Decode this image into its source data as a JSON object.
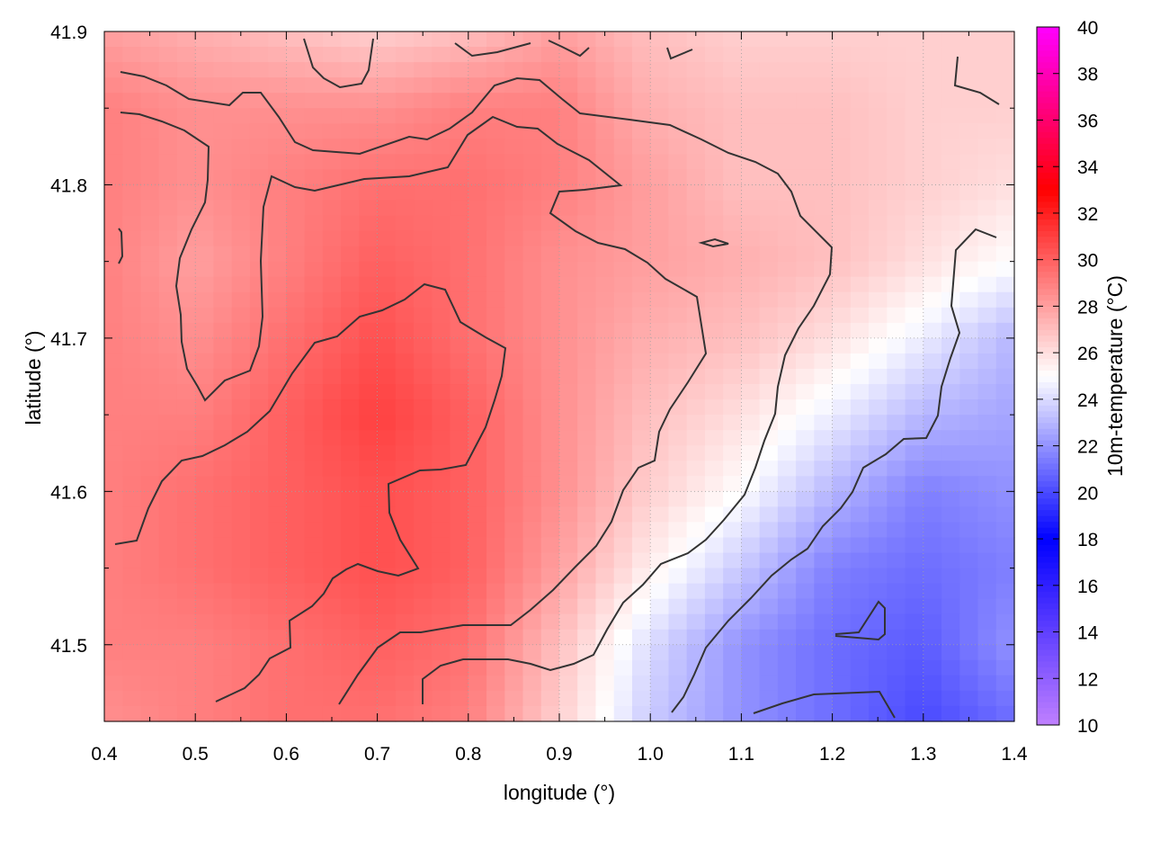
{
  "chart_data": {
    "type": "heatmap",
    "title": "",
    "xlabel": "longitude (°)",
    "ylabel": "latitude (°)",
    "colorbar_label": "10m-temperature (°C)",
    "xlim": [
      0.4,
      1.4
    ],
    "ylim": [
      41.45,
      41.9
    ],
    "clim": [
      10,
      40
    ],
    "grid": true,
    "xticks": [
      "0.4",
      "0.5",
      "0.6",
      "0.7",
      "0.8",
      "0.9",
      "1.0",
      "1.1",
      "1.2",
      "1.3",
      "1.4"
    ],
    "yticks": [
      "41.5",
      "41.6",
      "41.7",
      "41.8",
      "41.9"
    ],
    "cticks": [
      "10",
      "12",
      "14",
      "16",
      "18",
      "20",
      "22",
      "24",
      "26",
      "28",
      "30",
      "32",
      "34",
      "36",
      "38",
      "40"
    ],
    "x": [
      0.4,
      0.5,
      0.6,
      0.7,
      0.8,
      0.9,
      1.0,
      1.1,
      1.2,
      1.3,
      1.4
    ],
    "y": [
      41.9,
      41.85,
      41.8,
      41.75,
      41.7,
      41.65,
      41.6,
      41.55,
      41.5,
      41.45
    ],
    "z": [
      [
        28,
        27.5,
        27,
        26.5,
        27,
        28,
        27,
        26.5,
        26.5,
        26.5,
        26.5
      ],
      [
        29,
        28.5,
        28.5,
        28.5,
        29,
        29,
        27.5,
        27,
        27,
        26.5,
        26.5
      ],
      [
        29,
        28.5,
        29,
        29.5,
        29.5,
        29,
        28,
        27,
        27,
        26.5,
        26
      ],
      [
        29,
        28,
        29,
        30,
        29.5,
        28.5,
        28,
        27.5,
        27,
        26,
        25
      ],
      [
        29,
        28.5,
        29.5,
        30.5,
        29.5,
        28.5,
        27.5,
        27,
        26,
        24.5,
        23
      ],
      [
        29,
        29,
        30,
        31,
        30,
        28.5,
        27,
        26,
        24.5,
        23,
        22.5
      ],
      [
        29,
        29.5,
        30,
        30.5,
        30,
        28.5,
        26.5,
        25,
        23,
        21.5,
        22
      ],
      [
        29,
        29.5,
        30,
        30.5,
        30,
        28,
        25.5,
        23.5,
        21.5,
        21,
        21.5
      ],
      [
        29,
        29,
        29.5,
        30,
        29.5,
        27,
        24,
        22,
        21,
        20.5,
        22
      ],
      [
        28.5,
        29,
        29.5,
        29.5,
        29,
        26.5,
        23.5,
        22,
        21,
        20,
        21
      ]
    ],
    "colormap": [
      {
        "value": 10,
        "color": "#c080ff"
      },
      {
        "value": 18,
        "color": "#0000ff"
      },
      {
        "value": 25,
        "color": "#ffffff"
      },
      {
        "value": 33,
        "color": "#ff0000"
      },
      {
        "value": 40,
        "color": "#ff00ff"
      }
    ],
    "contour_color": "#333333"
  }
}
